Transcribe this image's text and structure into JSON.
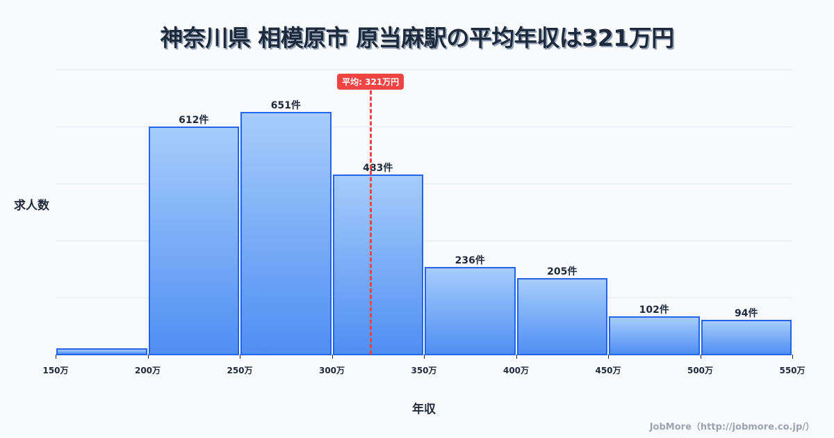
{
  "title": "神奈川県 相模原市 原当麻駅の平均年収は321万円",
  "chart_data": {
    "type": "bar",
    "title": "神奈川県 相模原市 原当麻駅の平均年収は321万円",
    "xlabel": "年収",
    "ylabel": "求人数",
    "categories": [
      "150-200万",
      "200-250万",
      "250-300万",
      "300-350万",
      "350-400万",
      "400-450万",
      "450-500万",
      "500-550万"
    ],
    "bin_edges": [
      150,
      200,
      250,
      300,
      350,
      400,
      450,
      500,
      550
    ],
    "values": [
      17,
      612,
      651,
      483,
      236,
      205,
      102,
      94
    ],
    "value_labels": [
      "",
      "612件",
      "651件",
      "483件",
      "236件",
      "205件",
      "102件",
      "94件"
    ],
    "x_tick_labels": [
      "150万",
      "200万",
      "250万",
      "300万",
      "350万",
      "400万",
      "450万",
      "500万",
      "550万"
    ],
    "mean": 321,
    "mean_label": "平均: 321万円",
    "ylim": [
      0,
      765
    ],
    "grid": true,
    "legend": "none",
    "colors": {
      "bar_top": "#a6cdfb",
      "bar_bottom": "#4f8ef3",
      "bar_border": "#2563eb",
      "mean_line": "#ef4444"
    }
  },
  "axis": {
    "ylabel": "求人数",
    "xlabel": "年収"
  },
  "footer": {
    "credit": "JobMore（http://jobmore.co.jp/）"
  }
}
